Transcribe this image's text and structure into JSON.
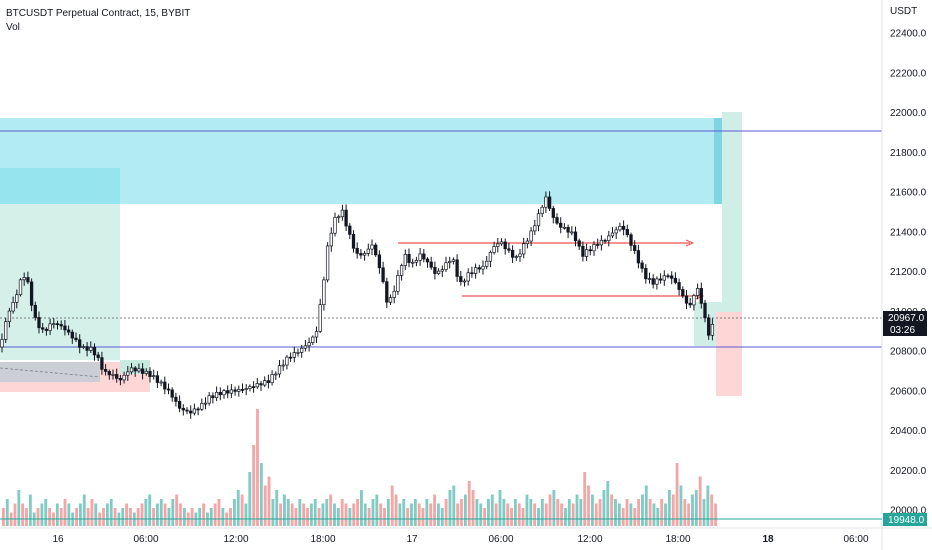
{
  "header": {
    "title": "BTCUSDT Perpetual Contract, 15, BYBIT",
    "volume_label": "Vol"
  },
  "price_axis": {
    "currency": "USDT"
  },
  "colors": {
    "up": "#26a69a",
    "down": "#ef5350",
    "zone_teal": "#b2ebf2",
    "line_blue": "#5b5bd6"
  },
  "chart_data": {
    "type": "candlestick",
    "yticks": [
      20000,
      20200,
      20400,
      20600,
      20800,
      21000,
      21200,
      21400,
      21600,
      21800,
      22000,
      22200,
      22400
    ],
    "ytick_labels": [
      "20000.0",
      "20200.0",
      "20400.0",
      "20600.0",
      "20800.0",
      "21000.0",
      "21200.0",
      "21400.0",
      "21600.0",
      "21800.0",
      "22000.0",
      "22200.0",
      "22400.0"
    ],
    "xticks": [
      {
        "label": "16",
        "bold": false
      },
      {
        "label": "06:00",
        "bold": false
      },
      {
        "label": "12:00",
        "bold": false
      },
      {
        "label": "18:00",
        "bold": false
      },
      {
        "label": "17",
        "bold": false
      },
      {
        "label": "06:00",
        "bold": false
      },
      {
        "label": "12:00",
        "bold": false
      },
      {
        "label": "18:00",
        "bold": false
      },
      {
        "label": "18",
        "bold": true
      },
      {
        "label": "06:00",
        "bold": false
      }
    ],
    "ylim": [
      19900,
      22520
    ],
    "last_price": {
      "value": "20967.0",
      "countdown": "03:26"
    },
    "volume_tag": {
      "value": "19948.0"
    },
    "horizontal_lines": [
      21900,
      20800
    ],
    "close_path": [
      [
        0,
        20820
      ],
      [
        8,
        21000
      ],
      [
        14,
        21050
      ],
      [
        20,
        21150
      ],
      [
        26,
        21200
      ],
      [
        30,
        21080
      ],
      [
        36,
        20950
      ],
      [
        44,
        20900
      ],
      [
        52,
        20950
      ],
      [
        62,
        20930
      ],
      [
        72,
        20880
      ],
      [
        82,
        20820
      ],
      [
        90,
        20820
      ],
      [
        96,
        20790
      ],
      [
        104,
        20700
      ],
      [
        112,
        20690
      ],
      [
        120,
        20660
      ],
      [
        130,
        20720
      ],
      [
        140,
        20710
      ],
      [
        150,
        20690
      ],
      [
        160,
        20650
      ],
      [
        170,
        20600
      ],
      [
        180,
        20520
      ],
      [
        190,
        20500
      ],
      [
        200,
        20530
      ],
      [
        210,
        20580
      ],
      [
        220,
        20600
      ],
      [
        232,
        20610
      ],
      [
        244,
        20620
      ],
      [
        256,
        20640
      ],
      [
        268,
        20660
      ],
      [
        278,
        20720
      ],
      [
        288,
        20780
      ],
      [
        298,
        20810
      ],
      [
        308,
        20850
      ],
      [
        316,
        20900
      ],
      [
        322,
        21100
      ],
      [
        328,
        21350
      ],
      [
        334,
        21470
      ],
      [
        342,
        21520
      ],
      [
        348,
        21420
      ],
      [
        356,
        21300
      ],
      [
        364,
        21300
      ],
      [
        372,
        21350
      ],
      [
        380,
        21230
      ],
      [
        388,
        21040
      ],
      [
        396,
        21150
      ],
      [
        404,
        21300
      ],
      [
        412,
        21250
      ],
      [
        420,
        21300
      ],
      [
        428,
        21260
      ],
      [
        436,
        21200
      ],
      [
        444,
        21240
      ],
      [
        452,
        21290
      ],
      [
        460,
        21150
      ],
      [
        468,
        21200
      ],
      [
        476,
        21230
      ],
      [
        484,
        21240
      ],
      [
        492,
        21330
      ],
      [
        500,
        21370
      ],
      [
        508,
        21320
      ],
      [
        516,
        21280
      ],
      [
        524,
        21350
      ],
      [
        532,
        21420
      ],
      [
        540,
        21520
      ],
      [
        546,
        21590
      ],
      [
        552,
        21500
      ],
      [
        558,
        21450
      ],
      [
        566,
        21430
      ],
      [
        574,
        21400
      ],
      [
        582,
        21300
      ],
      [
        590,
        21330
      ],
      [
        598,
        21360
      ],
      [
        606,
        21380
      ],
      [
        614,
        21420
      ],
      [
        622,
        21450
      ],
      [
        628,
        21390
      ],
      [
        636,
        21300
      ],
      [
        644,
        21200
      ],
      [
        652,
        21160
      ],
      [
        660,
        21180
      ],
      [
        668,
        21200
      ],
      [
        676,
        21160
      ],
      [
        684,
        21080
      ],
      [
        690,
        21040
      ],
      [
        696,
        21140
      ],
      [
        700,
        21100
      ],
      [
        704,
        21000
      ],
      [
        708,
        20900
      ],
      [
        712,
        20940
      ],
      [
        716,
        20967
      ]
    ],
    "volume_bars": [
      4,
      6,
      3,
      5,
      8,
      5,
      4,
      7,
      3,
      4,
      5,
      6,
      4,
      3,
      5,
      4,
      6,
      5,
      3,
      4,
      5,
      7,
      4,
      6,
      5,
      3,
      4,
      5,
      6,
      4,
      3,
      4,
      5,
      4,
      3,
      4,
      5,
      6,
      7,
      4,
      5,
      6,
      5,
      4,
      6,
      7,
      5,
      4,
      3,
      4,
      3,
      4,
      5,
      3,
      4,
      5,
      6,
      4,
      3,
      4,
      6,
      8,
      7,
      5,
      12,
      18,
      26,
      14,
      9,
      11,
      6,
      8,
      5,
      7,
      6,
      5,
      4,
      6,
      5,
      4,
      5,
      6,
      4,
      5,
      6,
      7,
      5,
      4,
      6,
      5,
      4,
      5,
      6,
      8,
      5,
      4,
      6,
      7,
      5,
      4,
      6,
      9,
      7,
      5,
      6,
      4,
      5,
      6,
      5,
      4,
      6,
      5,
      7,
      5,
      4,
      6,
      8,
      9,
      5,
      6,
      7,
      10,
      8,
      6,
      5,
      4,
      6,
      7,
      5,
      8,
      6,
      5,
      4,
      6,
      5,
      4,
      7,
      6,
      5,
      4,
      6,
      5,
      7,
      8,
      6,
      5,
      4,
      6,
      5,
      7,
      6,
      12,
      9,
      7,
      5,
      6,
      8,
      10,
      7,
      6,
      5,
      4,
      6,
      5,
      4,
      6,
      7,
      9,
      6,
      5,
      4,
      6,
      5,
      8,
      7,
      14,
      9,
      6,
      5,
      7,
      8,
      11,
      6,
      9,
      7,
      5
    ]
  }
}
